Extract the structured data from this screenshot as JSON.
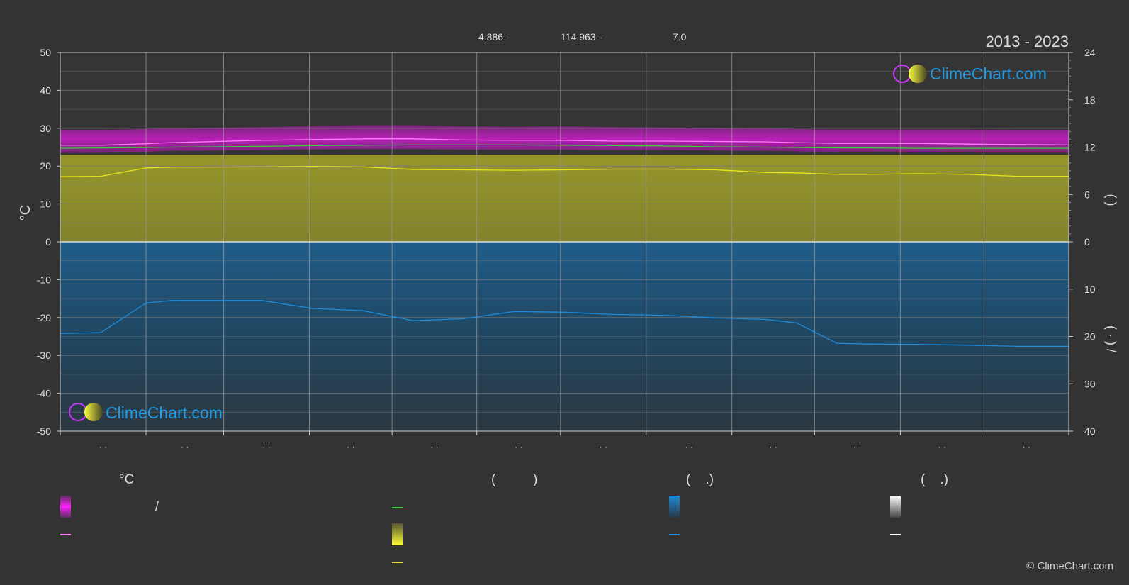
{
  "header": {
    "lat": "4.886 -",
    "lon": "114.963 -",
    "elev": "7.0",
    "period": "2013 - 2023"
  },
  "logo": {
    "text": "ClimeChart.com"
  },
  "copyright": "© ClimeChart.com",
  "colors": {
    "background": "#333333",
    "sunshine_band": "#b0b020",
    "sunshine_line": "#e6e61a",
    "temp_band": "#d21ed2",
    "temp_line": "#ff7aff",
    "daylight_line": "#44cc44",
    "precip_band": "#1f5f8f",
    "precip_line": "#1e8ad9",
    "logo_text": "#1e9be6"
  },
  "legend": {
    "col1_header": "°C",
    "col2_header": "(          )",
    "col3_header": "(    .)",
    "col4_header": "(    .)",
    "slash": "/"
  },
  "chart_data": {
    "type": "area",
    "xlabel": "",
    "ylabel": "°C",
    "ylim": [
      -50,
      50
    ],
    "yticks": [
      50,
      40,
      30,
      20,
      10,
      0,
      -10,
      -20,
      -30,
      -40,
      -50
    ],
    "right_upper_ticks": [
      24,
      18,
      12,
      6,
      0
    ],
    "right_lower_ticks": [
      10,
      20,
      30,
      40
    ],
    "right_upper_label": "(        )",
    "right_lower_label": "(  ·  )  /",
    "x_tick_labels": [
      "· ·",
      "· ·",
      "· ·",
      "· ·",
      "· ·",
      "· ·",
      "· ·",
      "· ·",
      "· ·",
      "· ·",
      "· ·",
      "· ·"
    ],
    "x": [
      0,
      0.04,
      0.085,
      0.11,
      0.2,
      0.25,
      0.3,
      0.35,
      0.4,
      0.45,
      0.5,
      0.55,
      0.6,
      0.65,
      0.7,
      0.73,
      0.77,
      0.8,
      0.85,
      0.9,
      0.95,
      1.0
    ],
    "series": [
      {
        "key": "temp_mean",
        "values": [
          25.5,
          25.5,
          25.9,
          26.2,
          26.8,
          27.0,
          27.2,
          27.2,
          26.9,
          26.8,
          26.8,
          26.6,
          26.6,
          26.5,
          26.4,
          26.2,
          26.0,
          26.0,
          26.0,
          25.8,
          25.7,
          25.6
        ]
      },
      {
        "key": "temp_band_max",
        "values": [
          29.5,
          29.5,
          29.8,
          30.0,
          30.3,
          30.6,
          30.8,
          30.8,
          30.5,
          30.4,
          30.5,
          30.3,
          30.2,
          30.1,
          30.0,
          29.8,
          29.6,
          29.6,
          29.6,
          29.6,
          29.5,
          29.5
        ]
      },
      {
        "key": "temp_band_min",
        "values": [
          23.5,
          23.5,
          23.8,
          24.0,
          24.2,
          24.4,
          24.5,
          24.5,
          24.3,
          24.3,
          24.3,
          24.2,
          24.2,
          24.1,
          24.0,
          23.9,
          23.8,
          23.8,
          23.7,
          23.6,
          23.5,
          23.5
        ]
      },
      {
        "key": "daylight",
        "values": [
          24.7,
          24.8,
          24.9,
          25.0,
          25.2,
          25.4,
          25.5,
          25.6,
          25.6,
          25.6,
          25.5,
          25.4,
          25.3,
          25.1,
          25.0,
          24.9,
          24.8,
          24.8,
          24.7,
          24.7,
          24.7,
          24.7
        ]
      },
      {
        "key": "sunshine",
        "values": [
          17.2,
          17.3,
          19.5,
          19.7,
          19.8,
          19.9,
          19.8,
          19.1,
          19.0,
          18.9,
          19.0,
          19.2,
          19.2,
          19.0,
          18.3,
          18.2,
          17.8,
          17.8,
          18.0,
          17.8,
          17.3,
          17.3
        ]
      },
      {
        "key": "precip_mean",
        "values": [
          -24.2,
          -24.0,
          -16.2,
          -15.5,
          -15.5,
          -17.6,
          -18.2,
          -20.8,
          -20.3,
          -18.4,
          -18.6,
          -19.2,
          -19.4,
          -20.1,
          -20.5,
          -21.4,
          -26.8,
          -27.0,
          -27.1,
          -27.3,
          -27.6,
          -27.6
        ]
      }
    ]
  }
}
